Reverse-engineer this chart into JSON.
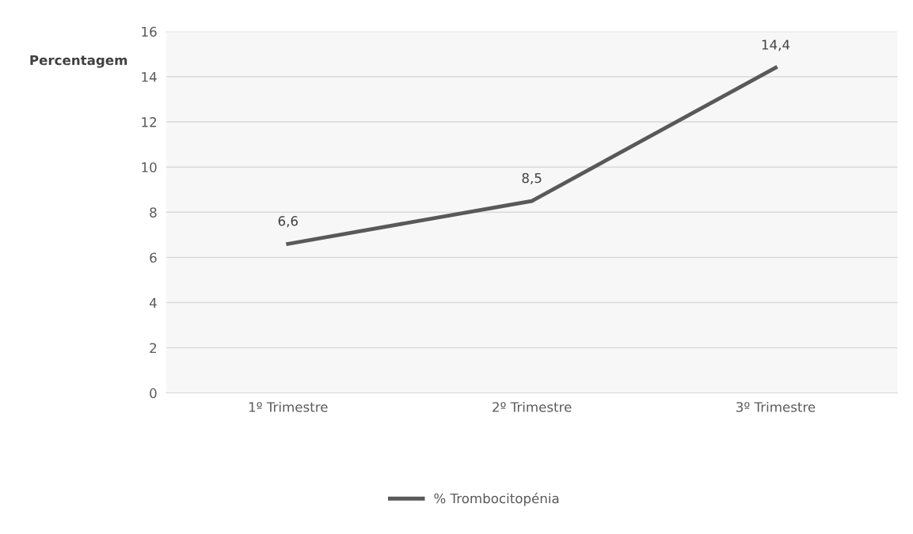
{
  "chart_data": {
    "type": "line",
    "ylabel": "Percentagem",
    "categories": [
      "1º Trimestre",
      "2º Trimestre",
      "3º Trimestre"
    ],
    "series": [
      {
        "name": "% Trombocitopénia",
        "color": "#595959",
        "values": [
          6.6,
          8.5,
          14.4
        ],
        "value_labels": [
          "6,6",
          "8,5",
          "14,4"
        ]
      }
    ],
    "ylim": [
      0,
      16
    ],
    "yticks": [
      0,
      2,
      4,
      6,
      8,
      10,
      12,
      14,
      16
    ],
    "grid": "y",
    "legend": "bottom",
    "marker": "none",
    "line_style": "solid"
  }
}
